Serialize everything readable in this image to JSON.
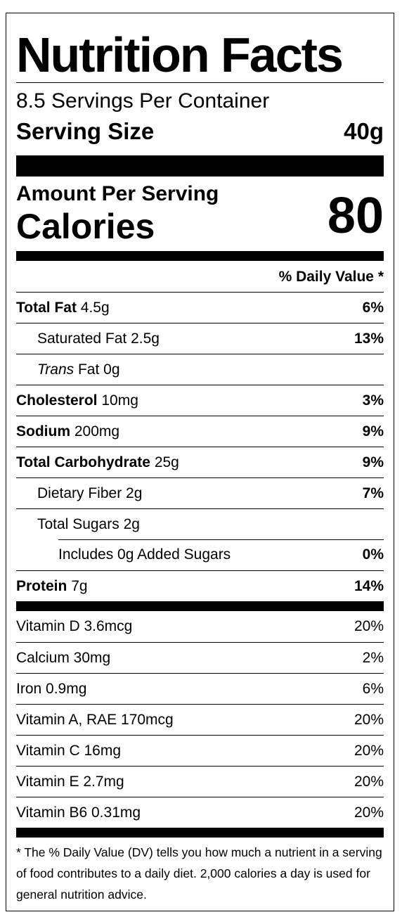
{
  "title": "Nutrition Facts",
  "servings_per_container": "8.5 Servings Per Container",
  "serving_size": {
    "label": "Serving Size",
    "value": "40g"
  },
  "amount_per_serving": "Amount Per Serving",
  "calories": {
    "label": "Calories",
    "value": "80"
  },
  "dv_header": "% Daily Value *",
  "nutrients": [
    {
      "name": "Total Fat",
      "amount": "4.5g",
      "dv": "6%"
    },
    {
      "name": "Saturated Fat",
      "amount": "2.5g",
      "dv": "13%"
    },
    {
      "name_italic": "Trans",
      "name": "Fat",
      "amount": "0g",
      "dv": ""
    },
    {
      "name": "Cholesterol",
      "amount": "10mg",
      "dv": "3%"
    },
    {
      "name": "Sodium",
      "amount": "200mg",
      "dv": "9%"
    },
    {
      "name": "Total Carbohydrate",
      "amount": "25g",
      "dv": "9%"
    },
    {
      "name": "Dietary Fiber",
      "amount": "2g",
      "dv": "7%"
    },
    {
      "name": "Total Sugars",
      "amount": "2g",
      "dv": ""
    },
    {
      "name": "Includes 0g Added Sugars",
      "amount": "",
      "dv": "0%"
    },
    {
      "name": "Protein",
      "amount": "7g",
      "dv": "14%"
    }
  ],
  "vitamins": [
    {
      "name": "Vitamin D 3.6mcg",
      "dv": "20%"
    },
    {
      "name": "Calcium 30mg",
      "dv": "2%"
    },
    {
      "name": "Iron 0.9mg",
      "dv": "6%"
    },
    {
      "name": "Vitamin A, RAE 170mcg",
      "dv": "20%"
    },
    {
      "name": "Vitamin C 16mg",
      "dv": "20%"
    },
    {
      "name": "Vitamin E 2.7mg",
      "dv": "20%"
    },
    {
      "name": "Vitamin B6 0.31mg",
      "dv": "20%"
    }
  ],
  "footnote": "* The % Daily Value (DV) tells you how much a nutrient in a serving of food contributes to a daily diet. 2,000 calories a day is used for general nutrition advice."
}
